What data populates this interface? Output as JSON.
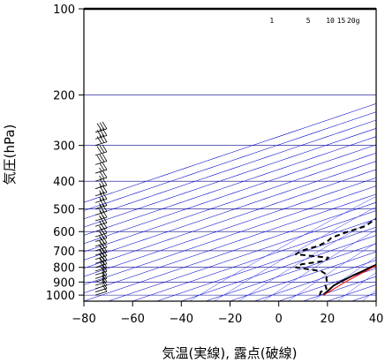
{
  "chart_data": {
    "type": "line",
    "title": "",
    "xlabel": "気温(実線), 露点(破線)",
    "ylabel": "気圧(hPa)",
    "x_range": [
      -80,
      40
    ],
    "y_range_hPa": [
      1050,
      100
    ],
    "y_scale": "log",
    "skew": true,
    "x_ticks": [
      "−80",
      "−60",
      "−40",
      "−20",
      "0",
      "20",
      "40"
    ],
    "x_tick_values": [
      -80,
      -60,
      -40,
      -20,
      0,
      20,
      40
    ],
    "y_ticks": [
      "100",
      "200",
      "300",
      "400",
      "500",
      "600",
      "700",
      "800",
      "900",
      "1000"
    ],
    "y_tick_values": [
      100,
      200,
      300,
      400,
      500,
      600,
      700,
      800,
      900,
      1000
    ],
    "mixing_ratio_labels": [
      "1",
      "5",
      "10",
      "15",
      "20g"
    ],
    "series": [
      {
        "role": "temperature",
        "style": "solid",
        "color": "#000000",
        "points": [
          [
            1000,
            11.0
          ],
          [
            975,
            8.5
          ],
          [
            950,
            6.0
          ],
          [
            925,
            3.5
          ],
          [
            900,
            2.0
          ],
          [
            875,
            0.5
          ],
          [
            850,
            -1.0
          ],
          [
            825,
            -2.0
          ],
          [
            800,
            -3.5
          ],
          [
            775,
            -4.5
          ],
          [
            750,
            -6.5
          ],
          [
            725,
            -8.0
          ],
          [
            700,
            -9.5
          ],
          [
            675,
            -11.0
          ],
          [
            650,
            -12.5
          ],
          [
            630,
            -13.0
          ],
          [
            600,
            -14.5
          ],
          [
            550,
            -19.0
          ],
          [
            500,
            -23.5
          ],
          [
            450,
            -28.0
          ],
          [
            400,
            -33.0
          ],
          [
            350,
            -38.5
          ],
          [
            300,
            -45.0
          ],
          [
            270,
            -48.5
          ],
          [
            250,
            -51.0
          ],
          [
            230,
            -51.5
          ],
          [
            215,
            -51.0
          ],
          [
            200,
            -52.5
          ],
          [
            185,
            -54.0
          ],
          [
            170,
            -55.5
          ],
          [
            150,
            -58.5
          ],
          [
            130,
            -62.5
          ],
          [
            115,
            -63.0
          ],
          [
            105,
            -64.0
          ],
          [
            100,
            -65.0
          ]
        ]
      },
      {
        "role": "dewpoint",
        "style": "dashed",
        "color": "#000000",
        "points": [
          [
            1000,
            9.5
          ],
          [
            975,
            6.0
          ],
          [
            950,
            4.5
          ],
          [
            925,
            0.0
          ],
          [
            900,
            -3.5
          ],
          [
            875,
            -8.0
          ],
          [
            850,
            -12.0
          ],
          [
            825,
            -19.0
          ],
          [
            800,
            -34.0
          ],
          [
            780,
            -35.5
          ],
          [
            760,
            -30.0
          ],
          [
            740,
            -32.5
          ],
          [
            720,
            -50.0
          ],
          [
            700,
            -52.0
          ],
          [
            675,
            -51.0
          ],
          [
            650,
            -52.5
          ],
          [
            630,
            -55.5
          ],
          [
            600,
            -56.0
          ],
          [
            575,
            -55.5
          ],
          [
            550,
            -59.0
          ],
          [
            500,
            -64.5
          ],
          [
            450,
            -67.5
          ],
          [
            400,
            -70.5
          ],
          [
            370,
            -72.0
          ]
        ]
      },
      {
        "role": "parcel",
        "style": "solid",
        "color": "#ff0000",
        "points": [
          [
            1000,
            11.0
          ],
          [
            900,
            4.0
          ],
          [
            850,
            0.8
          ],
          [
            800,
            -2.5
          ],
          [
            700,
            -10.0
          ],
          [
            600,
            -19.0
          ],
          [
            500,
            -30.0
          ],
          [
            400,
            -44.0
          ],
          [
            300,
            -61.0
          ],
          [
            250,
            -72.0
          ],
          [
            230,
            -79.0
          ]
        ]
      }
    ],
    "wind_barbs": [
      {
        "p": 1000,
        "speed_kt": 10
      },
      {
        "p": 975,
        "speed_kt": 10
      },
      {
        "p": 950,
        "speed_kt": 10
      },
      {
        "p": 925,
        "speed_kt": 15
      },
      {
        "p": 900,
        "speed_kt": 15
      },
      {
        "p": 875,
        "speed_kt": 15
      },
      {
        "p": 850,
        "speed_kt": 20
      },
      {
        "p": 825,
        "speed_kt": 20
      },
      {
        "p": 800,
        "speed_kt": 20
      },
      {
        "p": 775,
        "speed_kt": 25
      },
      {
        "p": 750,
        "speed_kt": 25
      },
      {
        "p": 725,
        "speed_kt": 25
      },
      {
        "p": 700,
        "speed_kt": 25
      },
      {
        "p": 675,
        "speed_kt": 25
      },
      {
        "p": 650,
        "speed_kt": 25
      },
      {
        "p": 625,
        "speed_kt": 25
      },
      {
        "p": 600,
        "speed_kt": 25
      },
      {
        "p": 575,
        "speed_kt": 25
      },
      {
        "p": 550,
        "speed_kt": 25
      },
      {
        "p": 525,
        "speed_kt": 25
      },
      {
        "p": 500,
        "speed_kt": 25
      },
      {
        "p": 475,
        "speed_kt": 25
      },
      {
        "p": 450,
        "speed_kt": 25
      },
      {
        "p": 425,
        "speed_kt": 25
      },
      {
        "p": 400,
        "speed_kt": 25
      },
      {
        "p": 375,
        "speed_kt": 25
      },
      {
        "p": 350,
        "speed_kt": 30
      },
      {
        "p": 325,
        "speed_kt": 30
      },
      {
        "p": 300,
        "speed_kt": 30
      },
      {
        "p": 285,
        "speed_kt": 30
      },
      {
        "p": 270,
        "speed_kt": 30
      }
    ],
    "colors": {
      "temperature": "#000000",
      "dewpoint": "#000000",
      "parcel": "#ff0000",
      "isotherms": "#0000cc",
      "isobars": "#00008b",
      "dry_adiabats": "#3030ff",
      "wind_barbs": "#000000"
    }
  }
}
